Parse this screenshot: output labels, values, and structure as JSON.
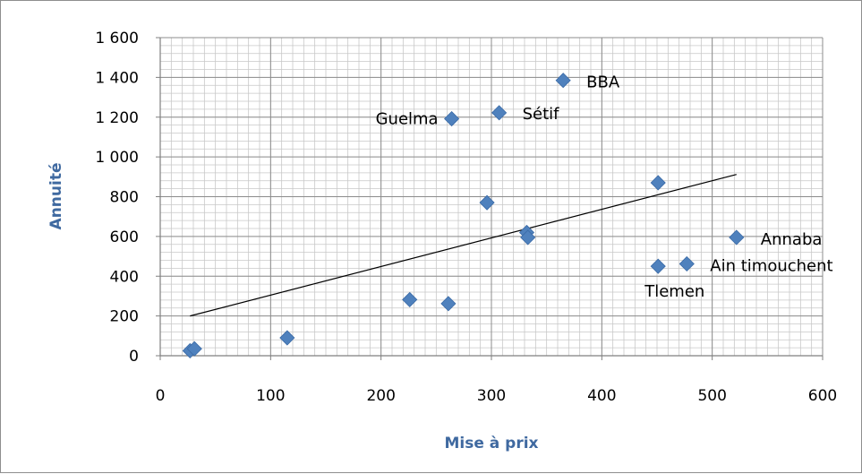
{
  "chart_data": {
    "type": "scatter",
    "title": "",
    "xlabel": "Mise à prix",
    "ylabel": "Annuité",
    "xlim": [
      0,
      600
    ],
    "ylim": [
      0,
      1600
    ],
    "x_ticks": [
      0,
      100,
      200,
      300,
      400,
      500,
      600
    ],
    "y_ticks": [
      0,
      200,
      400,
      600,
      800,
      1000,
      1200,
      1400,
      1600
    ],
    "x_tick_labels": [
      "0",
      "100",
      "200",
      "300",
      "400",
      "500",
      "600"
    ],
    "y_tick_labels": [
      "0",
      "200",
      "400",
      "600",
      "800",
      "1 000",
      "1 200",
      "1 400",
      "1 600"
    ],
    "grid": true,
    "marker_color": "#4f81bd",
    "trendline_color": "#000000",
    "points": [
      {
        "x": 27,
        "y": 25,
        "label": ""
      },
      {
        "x": 31,
        "y": 35,
        "label": ""
      },
      {
        "x": 115,
        "y": 90,
        "label": ""
      },
      {
        "x": 226,
        "y": 282,
        "label": ""
      },
      {
        "x": 261,
        "y": 262,
        "label": ""
      },
      {
        "x": 264,
        "y": 1192,
        "label": "Guelma"
      },
      {
        "x": 296,
        "y": 770,
        "label": ""
      },
      {
        "x": 307,
        "y": 1222,
        "label": "Sétif"
      },
      {
        "x": 332,
        "y": 620,
        "label": ""
      },
      {
        "x": 333,
        "y": 595,
        "label": ""
      },
      {
        "x": 365,
        "y": 1385,
        "label": "BBA"
      },
      {
        "x": 451,
        "y": 870,
        "label": ""
      },
      {
        "x": 451,
        "y": 450,
        "label": "Tlemen"
      },
      {
        "x": 477,
        "y": 462,
        "label": "Ain timouchent"
      },
      {
        "x": 522,
        "y": 595,
        "label": "Annaba"
      }
    ],
    "trendline": {
      "x": [
        27,
        522
      ],
      "y": [
        200,
        912
      ]
    }
  }
}
